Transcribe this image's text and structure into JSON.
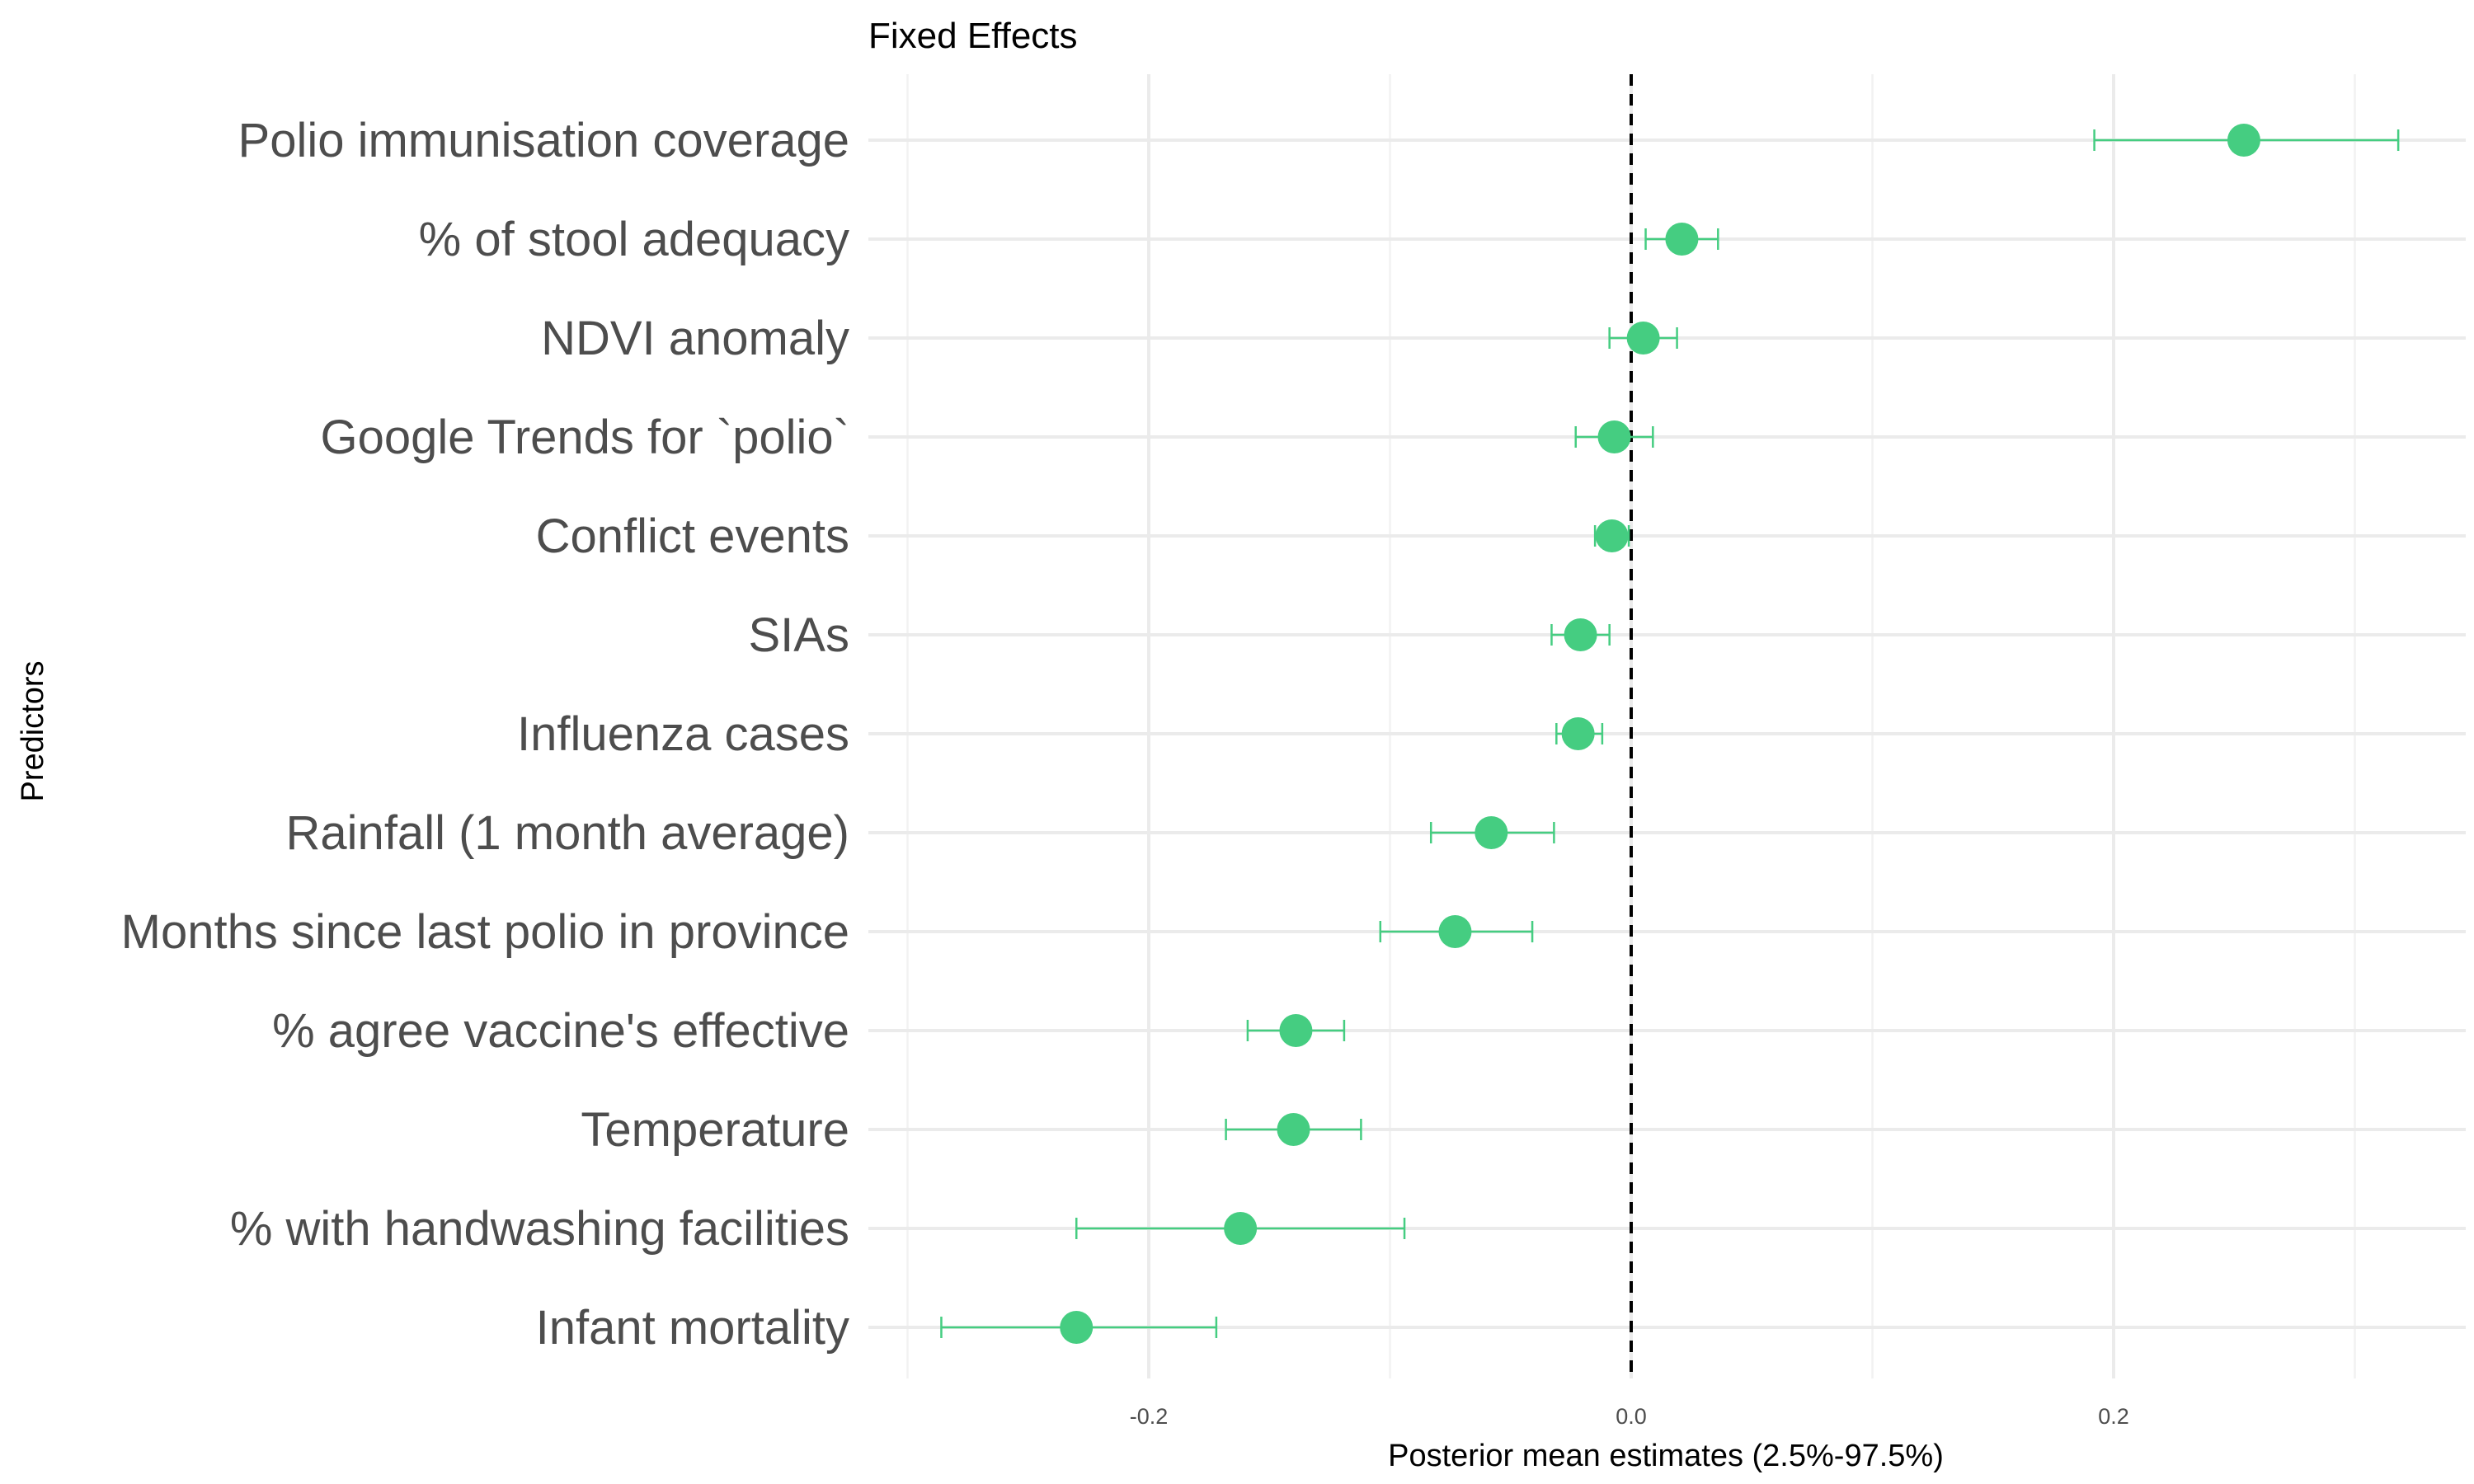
{
  "chart_data": {
    "type": "scatter",
    "subtype": "forest-plot",
    "title": "Fixed Effects",
    "xlabel": "Posterior mean estimates (2.5%-97.5%)",
    "ylabel": "Predictors",
    "xlim": [
      -0.3,
      0.35
    ],
    "x_ticks": [
      -0.2,
      0.0,
      0.2
    ],
    "x_tick_labels": [
      "-0.2",
      "0.0",
      "0.2"
    ],
    "reference_line": 0,
    "grid": true,
    "legend": "none",
    "color": "#45cd81",
    "predictors": [
      {
        "label": "Polio immunisation coverage",
        "mean": 0.254,
        "lower": 0.192,
        "upper": 0.318
      },
      {
        "label": "% of stool adequacy",
        "mean": 0.021,
        "lower": 0.006,
        "upper": 0.036
      },
      {
        "label": "NDVI anomaly",
        "mean": 0.005,
        "lower": -0.009,
        "upper": 0.019
      },
      {
        "label": "Google Trends for `polio`",
        "mean": -0.007,
        "lower": -0.023,
        "upper": 0.009
      },
      {
        "label": "Conflict events",
        "mean": -0.008,
        "lower": -0.015,
        "upper": -0.001
      },
      {
        "label": "SIAs",
        "mean": -0.021,
        "lower": -0.033,
        "upper": -0.009
      },
      {
        "label": "Influenza cases",
        "mean": -0.022,
        "lower": -0.031,
        "upper": -0.012
      },
      {
        "label": "Rainfall (1 month average)",
        "mean": -0.058,
        "lower": -0.083,
        "upper": -0.032
      },
      {
        "label": "Months since last polio in province",
        "mean": -0.073,
        "lower": -0.104,
        "upper": -0.041
      },
      {
        "label": "% agree vaccine's effective",
        "mean": -0.139,
        "lower": -0.159,
        "upper": -0.119
      },
      {
        "label": "Temperature",
        "mean": -0.14,
        "lower": -0.168,
        "upper": -0.112
      },
      {
        "label": "% with handwashing facilities",
        "mean": -0.162,
        "lower": -0.23,
        "upper": -0.094
      },
      {
        "label": "Infant mortality",
        "mean": -0.23,
        "lower": -0.286,
        "upper": -0.172
      }
    ]
  }
}
